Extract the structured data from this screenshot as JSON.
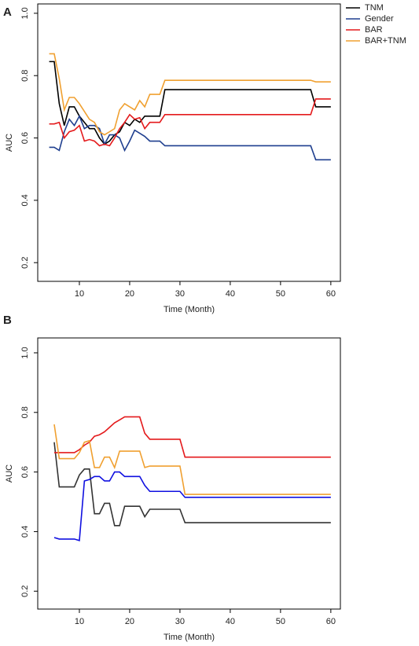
{
  "chart_data": [
    {
      "type": "line",
      "title": "A",
      "xlabel": "Time (Month)",
      "ylabel": "AUC",
      "x": [
        4,
        5,
        6,
        7,
        8,
        9,
        10,
        11,
        12,
        13,
        14,
        15,
        16,
        17,
        18,
        19,
        20,
        21,
        22,
        23,
        24,
        25,
        26,
        27,
        56,
        57,
        60
      ],
      "series": [
        {
          "name": "TNM",
          "color": "#000000",
          "values": [
            0.845,
            0.845,
            0.71,
            0.64,
            0.7,
            0.7,
            0.67,
            0.65,
            0.63,
            0.63,
            0.6,
            0.58,
            0.59,
            0.61,
            0.62,
            0.65,
            0.64,
            0.66,
            0.65,
            0.67,
            0.67,
            0.67,
            0.67,
            0.755,
            0.755,
            0.7,
            0.7
          ]
        },
        {
          "name": "Gender",
          "color": "#1f3f8f",
          "values": [
            0.57,
            0.57,
            0.56,
            0.62,
            0.66,
            0.64,
            0.67,
            0.63,
            0.64,
            0.64,
            0.63,
            0.58,
            0.61,
            0.61,
            0.6,
            0.56,
            0.59,
            0.625,
            0.615,
            0.605,
            0.59,
            0.59,
            0.59,
            0.575,
            0.575,
            0.53,
            0.53
          ]
        },
        {
          "name": "BAR",
          "color": "#e41a1c",
          "values": [
            0.645,
            0.645,
            0.65,
            0.6,
            0.62,
            0.625,
            0.64,
            0.59,
            0.595,
            0.59,
            0.575,
            0.58,
            0.575,
            0.6,
            0.63,
            0.65,
            0.675,
            0.66,
            0.665,
            0.63,
            0.65,
            0.65,
            0.65,
            0.675,
            0.675,
            0.725,
            0.725
          ]
        },
        {
          "name": "BAR+TNM",
          "color": "#f0a030",
          "values": [
            0.87,
            0.87,
            0.79,
            0.69,
            0.73,
            0.73,
            0.71,
            0.685,
            0.66,
            0.65,
            0.62,
            0.61,
            0.62,
            0.63,
            0.69,
            0.71,
            0.7,
            0.69,
            0.72,
            0.7,
            0.74,
            0.74,
            0.74,
            0.785,
            0.785,
            0.78,
            0.78
          ]
        }
      ],
      "xlim": [
        1.72,
        61.9
      ],
      "xticks": [
        10,
        20,
        30,
        40,
        50,
        60
      ],
      "ylim": [
        0.14,
        1.03
      ],
      "yticks": [
        0.2,
        0.4,
        0.6,
        0.8,
        {
          "value": 1,
          "label": "1.0"
        }
      ],
      "legend": "outside-top-right"
    },
    {
      "type": "line",
      "title": "B",
      "xlabel": "Time (Month)",
      "ylabel": "AUC",
      "x": [
        5,
        6,
        7,
        8,
        9,
        10,
        11,
        12,
        13,
        14,
        15,
        16,
        17,
        18,
        19,
        20,
        21,
        22,
        23,
        24,
        30,
        31,
        60
      ],
      "series": [
        {
          "color": "#333333",
          "values": [
            0.7,
            0.55,
            0.55,
            0.55,
            0.55,
            0.59,
            0.61,
            0.61,
            0.46,
            0.46,
            0.495,
            0.495,
            0.42,
            0.42,
            0.485,
            0.485,
            0.485,
            0.485,
            0.45,
            0.475,
            0.475,
            0.43,
            0.43
          ]
        },
        {
          "color": "#1010e0",
          "values": [
            0.38,
            0.375,
            0.375,
            0.375,
            0.375,
            0.37,
            0.57,
            0.575,
            0.585,
            0.585,
            0.57,
            0.57,
            0.6,
            0.6,
            0.585,
            0.585,
            0.585,
            0.585,
            0.555,
            0.535,
            0.535,
            0.515,
            0.515
          ]
        },
        {
          "color": "#e41a1c",
          "values": [
            0.665,
            0.665,
            0.665,
            0.665,
            0.665,
            0.675,
            0.69,
            0.7,
            0.72,
            0.725,
            0.735,
            0.75,
            0.765,
            0.775,
            0.785,
            0.785,
            0.785,
            0.785,
            0.73,
            0.71,
            0.71,
            0.65,
            0.65
          ]
        },
        {
          "color": "#f0a030",
          "values": [
            0.76,
            0.645,
            0.645,
            0.645,
            0.645,
            0.665,
            0.7,
            0.705,
            0.615,
            0.615,
            0.65,
            0.65,
            0.615,
            0.67,
            0.67,
            0.67,
            0.67,
            0.67,
            0.615,
            0.62,
            0.62,
            0.525,
            0.525
          ]
        }
      ],
      "xlim": [
        1.72,
        61.9
      ],
      "xticks": [
        10,
        20,
        30,
        40,
        50,
        60
      ],
      "ylim": [
        0.14,
        1.05
      ],
      "yticks": [
        0.2,
        0.4,
        0.6,
        0.8,
        {
          "value": 1,
          "label": "1.0"
        }
      ]
    }
  ]
}
